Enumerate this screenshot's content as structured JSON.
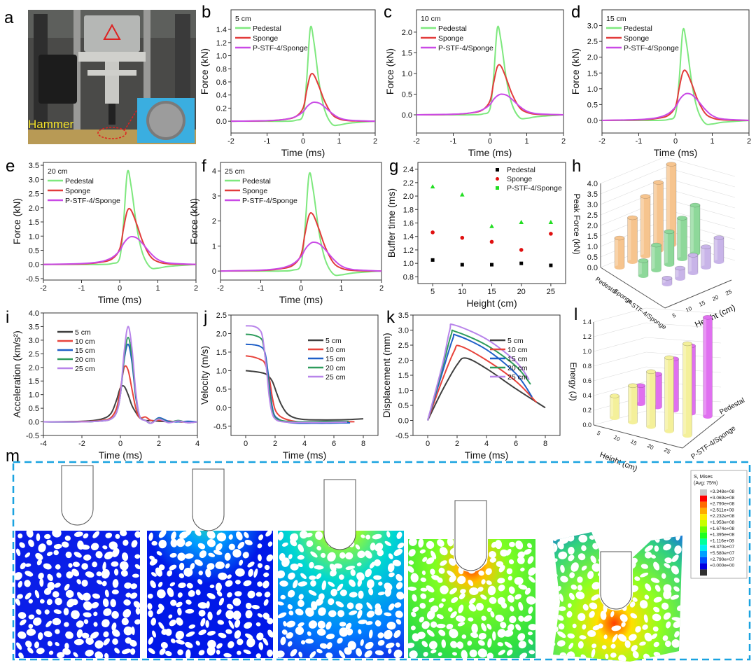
{
  "panel_labels": {
    "a": "a",
    "b": "b",
    "c": "c",
    "d": "d",
    "e": "e",
    "f": "f",
    "g": "g",
    "h": "h",
    "i": "i",
    "j": "j",
    "k": "k",
    "l": "l",
    "m": "m"
  },
  "photo": {
    "hammer_label": "Hammer"
  },
  "colors": {
    "pedestal": "#7ee87e",
    "sponge": "#e23b3b",
    "pstf": "#c94ae6",
    "h5": "#404040",
    "h10": "#e8433b",
    "h15": "#1f5fc8",
    "h20": "#2e9c5c",
    "h25": "#b884ea",
    "frame_dash": "#1aa3e0"
  },
  "chart_data": [
    {
      "id": "b",
      "type": "line",
      "condition": "5 cm",
      "xlabel": "Time (ms)",
      "ylabel": "Force (kN)",
      "xlim": [
        -2,
        2
      ],
      "ylim": [
        -0.18,
        1.7
      ],
      "xticks": [
        "-2",
        "-1",
        "0",
        "1",
        "2"
      ],
      "yticks": [
        "0.0",
        "0.2",
        "0.4",
        "0.6",
        "0.8",
        "1.0",
        "1.2",
        "1.4"
      ],
      "legend": "top-left",
      "x": [
        -2,
        -1,
        -0.5,
        -0.2,
        0,
        0.1,
        0.2,
        0.3,
        0.45,
        0.6,
        0.8,
        1,
        1.3,
        2
      ],
      "series": [
        {
          "name": "Pedestal",
          "color": "#7ee87e",
          "peak": 1.42,
          "profile": "pedestal"
        },
        {
          "name": "Sponge",
          "color": "#e23b3b",
          "peak": 0.72,
          "profile": "sponge"
        },
        {
          "name": "P-STF-4/Sponge",
          "color": "#c94ae6",
          "peak": 0.29,
          "profile": "pstf"
        }
      ]
    },
    {
      "id": "c",
      "type": "line",
      "condition": "10 cm",
      "xlabel": "Time (ms)",
      "ylabel": "Force (kN)",
      "xlim": [
        -2,
        2
      ],
      "ylim": [
        -0.44,
        2.54
      ],
      "xticks": [
        "-2",
        "-1",
        "0",
        "1",
        "2"
      ],
      "yticks": [
        "0.0",
        "0.5",
        "1.0",
        "1.5",
        "2.0"
      ],
      "legend": "top-left",
      "x": [
        -2,
        -1,
        -0.5,
        -0.2,
        0,
        0.1,
        0.2,
        0.3,
        0.45,
        0.6,
        0.8,
        1,
        1.3,
        2
      ],
      "series": [
        {
          "name": "Pedestal",
          "color": "#7ee87e",
          "peak": 2.1,
          "profile": "pedestal"
        },
        {
          "name": "Sponge",
          "color": "#e23b3b",
          "peak": 1.2,
          "profile": "sponge"
        },
        {
          "name": "P-STF-4/Sponge",
          "color": "#c94ae6",
          "peak": 0.5,
          "profile": "pstf"
        }
      ]
    },
    {
      "id": "d",
      "type": "line",
      "condition": "15 cm",
      "xlabel": "Time (ms)",
      "ylabel": "Force (kN)",
      "xlim": [
        -2,
        2
      ],
      "ylim": [
        -0.4,
        3.5
      ],
      "xticks": [
        "-2",
        "-1",
        "0",
        "1",
        "2"
      ],
      "yticks": [
        "0.0",
        "0.5",
        "1.0",
        "1.5",
        "2.0",
        "2.5",
        "3.0"
      ],
      "legend": "top-left",
      "x": [
        -2,
        -1,
        -0.5,
        -0.2,
        0,
        0.1,
        0.2,
        0.3,
        0.45,
        0.6,
        0.8,
        1,
        1.3,
        2
      ],
      "series": [
        {
          "name": "Pedestal",
          "color": "#7ee87e",
          "peak": 2.85,
          "profile": "pedestal"
        },
        {
          "name": "Sponge",
          "color": "#e23b3b",
          "peak": 1.57,
          "profile": "sponge"
        },
        {
          "name": "P-STF-4/Sponge",
          "color": "#c94ae6",
          "peak": 0.85,
          "profile": "pstf"
        }
      ]
    },
    {
      "id": "e",
      "type": "line",
      "condition": "20 cm",
      "xlabel": "Time (ms)",
      "ylabel": "Force (kN)",
      "xlim": [
        -2,
        2
      ],
      "ylim": [
        -0.55,
        3.6
      ],
      "xticks": [
        "-2",
        "-1",
        "0",
        "1",
        "2"
      ],
      "yticks": [
        "-0.5",
        "0.0",
        "0.5",
        "1.0",
        "1.5",
        "2.0",
        "2.5",
        "3.0",
        "3.5"
      ],
      "legend": "top-left",
      "x": [
        -2,
        -1,
        -0.5,
        -0.2,
        0,
        0.1,
        0.2,
        0.3,
        0.45,
        0.6,
        0.8,
        1,
        1.3,
        2
      ],
      "series": [
        {
          "name": "Pedestal",
          "color": "#7ee87e",
          "peak": 3.25,
          "profile": "pedestal"
        },
        {
          "name": "Sponge",
          "color": "#e23b3b",
          "peak": 1.95,
          "profile": "sponge"
        },
        {
          "name": "P-STF-4/Sponge",
          "color": "#c94ae6",
          "peak": 0.98,
          "profile": "pstf"
        }
      ]
    },
    {
      "id": "f",
      "type": "line",
      "condition": "25 cm",
      "xlabel": "Time (ms)",
      "ylabel": "Force (kN)",
      "xlim": [
        -2,
        2
      ],
      "ylim": [
        -0.36,
        4.34
      ],
      "xticks": [
        "-2",
        "-1",
        "0",
        "1",
        "2"
      ],
      "yticks": [
        "0",
        "1",
        "2",
        "3",
        "4"
      ],
      "legend": "top-left",
      "x": [
        -2,
        -1,
        -0.5,
        -0.2,
        0,
        0.1,
        0.2,
        0.3,
        0.45,
        0.6,
        0.8,
        1,
        1.3,
        2
      ],
      "series": [
        {
          "name": "Pedestal",
          "color": "#7ee87e",
          "peak": 3.85,
          "profile": "pedestal"
        },
        {
          "name": "Sponge",
          "color": "#e23b3b",
          "peak": 2.3,
          "profile": "sponge"
        },
        {
          "name": "P-STF-4/Sponge",
          "color": "#c94ae6",
          "peak": 1.15,
          "profile": "pstf"
        }
      ]
    },
    {
      "id": "g",
      "type": "scatter",
      "xlabel": "Height (cm)",
      "ylabel": "Buffer time (ms)",
      "xlim": [
        2.5,
        27.5
      ],
      "ylim": [
        0.7,
        2.5
      ],
      "xticks": [
        "5",
        "10",
        "15",
        "20",
        "25"
      ],
      "yticks": [
        "0.8",
        "1.0",
        "1.2",
        "1.4",
        "1.6",
        "1.8",
        "2.0",
        "2.2",
        "2.4"
      ],
      "legend": "top-right",
      "x": [
        5,
        10,
        15,
        20,
        25
      ],
      "series": [
        {
          "name": "Pedestal",
          "color": "#000000",
          "marker": "square",
          "y": [
            1.05,
            0.98,
            0.98,
            1.0,
            0.97
          ]
        },
        {
          "name": "Sponge",
          "color": "#e01010",
          "marker": "circle",
          "y": [
            1.46,
            1.38,
            1.32,
            1.2,
            1.44
          ]
        },
        {
          "name": "P-STF-4/Sponge",
          "color": "#22dd22",
          "marker": "triangle",
          "y": [
            2.14,
            2.02,
            1.55,
            1.61,
            1.61
          ]
        }
      ]
    },
    {
      "id": "h",
      "type": "bar3d",
      "zlabel": "Peak Force (kN)",
      "ylabel": "Height (cm)",
      "zlim": [
        0,
        4
      ],
      "zticks": [
        "0.0",
        "0.5",
        "1.0",
        "1.5",
        "2.0",
        "2.5",
        "3.0",
        "3.5",
        "4.0"
      ],
      "heights": [
        "5",
        "10",
        "15",
        "20",
        "25"
      ],
      "series": [
        {
          "name": "Pedestal",
          "color": "#f6c48e",
          "values": [
            1.4,
            2.1,
            2.85,
            3.25,
            3.85
          ]
        },
        {
          "name": "Sponge",
          "color": "#8ed89a",
          "values": [
            0.72,
            1.2,
            1.57,
            1.95,
            2.3
          ]
        },
        {
          "name": "P-STF-4/Sponge",
          "color": "#c8b4e8",
          "values": [
            0.29,
            0.5,
            0.85,
            0.98,
            1.15
          ]
        }
      ]
    },
    {
      "id": "i",
      "type": "line",
      "xlabel": "Time (ms)",
      "ylabel": "Acceleration (km/s²)",
      "xlim": [
        -4,
        4
      ],
      "ylim": [
        -0.5,
        4.0
      ],
      "xticks": [
        "-4",
        "-2",
        "0",
        "2",
        "4"
      ],
      "yticks": [
        "-0.5",
        "0.0",
        "0.5",
        "1.0",
        "1.5",
        "2.0",
        "2.5",
        "3.0",
        "3.5",
        "4.0"
      ],
      "legend": "left",
      "x": [
        -4,
        -2,
        -1,
        -0.5,
        -0.2,
        0,
        0.2,
        0.4,
        0.6,
        0.8,
        1,
        1.3,
        1.6,
        2,
        2.5,
        3,
        3.5,
        4
      ],
      "series": [
        {
          "name": "5 cm",
          "color": "#404040",
          "y": [
            0,
            0.02,
            0.1,
            0.3,
            0.8,
            1.25,
            1.3,
            1.0,
            0.6,
            0.35,
            0.15,
            0.05,
            0.05,
            0.02,
            0.01,
            0,
            0,
            0
          ]
        },
        {
          "name": "10 cm",
          "color": "#e8433b",
          "y": [
            0,
            0.01,
            0.05,
            0.15,
            0.5,
            1.2,
            2.0,
            1.9,
            1.2,
            0.5,
            0.15,
            0.18,
            0.05,
            0.06,
            0.03,
            0,
            0,
            0
          ]
        },
        {
          "name": "15 cm",
          "color": "#1f5fc8",
          "y": [
            0,
            0,
            0.03,
            0.1,
            0.35,
            1.0,
            2.3,
            2.85,
            2.2,
            0.9,
            0.2,
            0.05,
            -0.05,
            0.15,
            0.02,
            0,
            0.02,
            0
          ]
        },
        {
          "name": "20 cm",
          "color": "#2e9c5c",
          "y": [
            0,
            0,
            0.03,
            0.1,
            0.35,
            1.0,
            2.4,
            3.1,
            2.4,
            1.0,
            0.2,
            0.05,
            -0.05,
            0.12,
            -0.02,
            0.05,
            -0.03,
            0
          ]
        },
        {
          "name": "25 cm",
          "color": "#b884ea",
          "y": [
            0,
            0,
            0.03,
            0.1,
            0.35,
            1.0,
            2.6,
            3.5,
            2.7,
            1.1,
            0.2,
            0.05,
            -0.05,
            0.1,
            -0.03,
            0.03,
            -0.03,
            0
          ]
        }
      ]
    },
    {
      "id": "j",
      "type": "line",
      "xlabel": "Time (ms)",
      "ylabel": "Velocity (m/s)",
      "xlim": [
        -1,
        9
      ],
      "ylim": [
        -0.75,
        2.5
      ],
      "xticks": [
        "0",
        "2",
        "4",
        "6",
        "8"
      ],
      "yticks": [
        "-0.5",
        "0.0",
        "0.5",
        "1.0",
        "1.5",
        "2.0",
        "2.5"
      ],
      "legend": "right",
      "series": [
        {
          "name": "5 cm",
          "color": "#404040",
          "x": [
            0,
            0.5,
            1,
            1.4,
            1.8,
            2.1,
            2.4,
            2.8,
            3.3,
            4,
            5,
            6,
            7,
            8
          ],
          "y": [
            1.0,
            0.98,
            0.95,
            0.9,
            0.72,
            0.4,
            0.1,
            -0.15,
            -0.27,
            -0.32,
            -0.33,
            -0.33,
            -0.32,
            -0.3
          ]
        },
        {
          "name": "10 cm",
          "color": "#e8433b",
          "x": [
            0,
            0.5,
            1,
            1.3,
            1.6,
            1.8,
            2,
            2.3,
            2.8,
            3.5,
            4.5,
            5.5,
            6.5,
            7.4
          ],
          "y": [
            1.4,
            1.37,
            1.3,
            1.2,
            0.8,
            0.3,
            -0.05,
            -0.22,
            -0.32,
            -0.38,
            -0.39,
            -0.38,
            -0.38,
            -0.38
          ]
        },
        {
          "name": "15 cm",
          "color": "#1f5fc8",
          "x": [
            0,
            0.5,
            1,
            1.3,
            1.5,
            1.7,
            1.9,
            2.2,
            2.7,
            3.5,
            4.5,
            5.5,
            6.5,
            7.1
          ],
          "y": [
            1.71,
            1.7,
            1.65,
            1.5,
            1.0,
            0.3,
            -0.15,
            -0.3,
            -0.38,
            -0.42,
            -0.42,
            -0.42,
            -0.41,
            -0.41
          ]
        },
        {
          "name": "20 cm",
          "color": "#2e9c5c",
          "x": [
            0,
            0.5,
            1,
            1.2,
            1.45,
            1.65,
            1.85,
            2.1,
            2.6,
            3.5,
            4.5,
            5.5,
            6.5,
            7
          ],
          "y": [
            1.98,
            1.96,
            1.88,
            1.7,
            1.0,
            0.3,
            -0.15,
            -0.3,
            -0.36,
            -0.38,
            -0.38,
            -0.37,
            -0.37,
            -0.37
          ]
        },
        {
          "name": "25 cm",
          "color": "#b884ea",
          "x": [
            0,
            0.5,
            0.9,
            1.15,
            1.4,
            1.6,
            1.8,
            2.05,
            2.5,
            3.5,
            4.5,
            5.5,
            6.5,
            6.9
          ],
          "y": [
            2.21,
            2.2,
            2.12,
            1.9,
            1.1,
            0.3,
            -0.15,
            -0.32,
            -0.38,
            -0.4,
            -0.4,
            -0.4,
            -0.39,
            -0.39
          ]
        }
      ]
    },
    {
      "id": "k",
      "type": "line",
      "xlabel": "Time (ms)",
      "ylabel": "Displacement (mm)",
      "xlim": [
        -1,
        9
      ],
      "ylim": [
        -0.5,
        3.5
      ],
      "xticks": [
        "0",
        "2",
        "4",
        "6",
        "8"
      ],
      "yticks": [
        "-0.5",
        "0.0",
        "0.5",
        "1.0",
        "1.5",
        "2.0",
        "2.5",
        "3.0",
        "3.5"
      ],
      "legend": "right",
      "series": [
        {
          "name": "5 cm",
          "color": "#404040",
          "x": [
            0,
            1,
            2,
            2.6,
            4,
            6,
            8
          ],
          "y": [
            0,
            1.0,
            1.85,
            2.07,
            1.72,
            1.05,
            0.42
          ]
        },
        {
          "name": "10 cm",
          "color": "#e8433b",
          "x": [
            0,
            1,
            1.8,
            2.2,
            4,
            6,
            7.4
          ],
          "y": [
            0,
            1.35,
            2.3,
            2.47,
            2.0,
            1.3,
            0.6
          ]
        },
        {
          "name": "15 cm",
          "color": "#1f5fc8",
          "x": [
            0,
            1,
            1.7,
            2.0,
            4,
            6,
            7.1
          ],
          "y": [
            0,
            1.6,
            2.7,
            2.82,
            2.35,
            1.55,
            0.78
          ]
        },
        {
          "name": "20 cm",
          "color": "#2e9c5c",
          "x": [
            0,
            1,
            1.6,
            1.9,
            4,
            6,
            7
          ],
          "y": [
            0,
            1.75,
            2.85,
            2.95,
            2.5,
            1.8,
            1.2
          ]
        },
        {
          "name": "25 cm",
          "color": "#b884ea",
          "x": [
            0,
            1,
            1.5,
            1.8,
            4,
            6,
            6.9
          ],
          "y": [
            0,
            1.85,
            3.0,
            3.17,
            2.7,
            1.95,
            1.35
          ]
        }
      ]
    },
    {
      "id": "l",
      "type": "bar3d",
      "zlabel": "Energy (J)",
      "xlabel": "Height (cm)",
      "zlim": [
        0,
        1.4
      ],
      "zticks": [
        "0.0",
        "0.2",
        "0.4",
        "0.6",
        "0.8",
        "1.0",
        "1.2",
        "1.4"
      ],
      "heights": [
        "5",
        "10",
        "15",
        "20",
        "25"
      ],
      "series": [
        {
          "name": "Pedestal",
          "color": "#e070f0",
          "values": [
            0.25,
            0.45,
            0.7,
            0.92,
            1.35
          ]
        },
        {
          "name": "P-STF-4/Sponge",
          "color": "#f4f09a",
          "values": [
            0.3,
            0.5,
            0.75,
            1.0,
            1.25
          ]
        }
      ]
    }
  ],
  "profiles": {
    "pedestal": [
      0,
      0,
      0,
      0.01,
      0.07,
      0.45,
      1,
      0.85,
      0.4,
      0.12,
      -0.03,
      -0.04,
      -0.02,
      0
    ],
    "sponge": [
      0,
      0.01,
      0.04,
      0.1,
      0.28,
      0.65,
      0.97,
      0.98,
      0.72,
      0.42,
      0.15,
      0.05,
      0.01,
      0
    ],
    "pstf": [
      0,
      0.03,
      0.1,
      0.25,
      0.5,
      0.75,
      0.92,
      1,
      0.95,
      0.75,
      0.42,
      0.18,
      0.05,
      0
    ]
  },
  "simulation": {
    "legend_title": "S, Mises",
    "legend_subtitle": "(Avg: 75%)",
    "legend_values": [
      "+3.348e+08",
      "+3.069e+08",
      "+2.790e+08",
      "+2.511e+08",
      "+2.232e+08",
      "+1.953e+08",
      "+1.674e+08",
      "+1.395e+08",
      "+1.116e+08",
      "+8.370e+07",
      "+5.580e+07",
      "+2.790e+07",
      "+0.000e+00"
    ],
    "legend_colors": [
      "#c8c8c8",
      "#ff0000",
      "#ff6a00",
      "#ffaa00",
      "#ffe800",
      "#c8ff00",
      "#6eff00",
      "#1eff1e",
      "#00ff9a",
      "#00f0f0",
      "#00a0ff",
      "#0050ff",
      "#0000e0",
      "#303030"
    ]
  }
}
